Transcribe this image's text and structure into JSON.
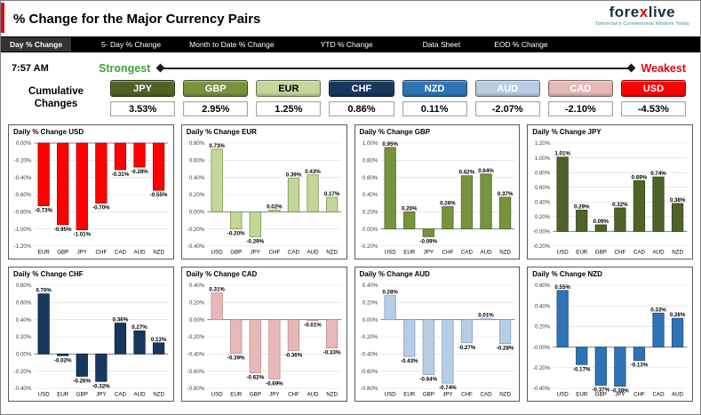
{
  "colors": {
    "strongest": "#3fa33a",
    "weakest": "#e30613",
    "logodark": "#17303e",
    "logoteal": "#2e8b8f",
    "navbg": "#000000",
    "navactivebg": "#333333"
  },
  "header": {
    "title": "% Change for the Major Currency Pairs",
    "logo_text_1": "fore",
    "logo_text_x": "x",
    "logo_text_2": "live",
    "logo_tagline": "Tomorrow's Conventional Wisdom Today"
  },
  "nav": {
    "items": [
      {
        "label": "Day % Change",
        "active": true
      },
      {
        "label": "5- Day % Change",
        "active": false
      },
      {
        "label": "Month to Date % Change",
        "active": false
      },
      {
        "label": "YTD % Change",
        "active": false
      },
      {
        "label": "Data Sheet",
        "active": false
      },
      {
        "label": "EOD % Change",
        "active": false
      }
    ]
  },
  "toolbar": {
    "time": "7:57 AM",
    "strongest_label": "Strongest",
    "weakest_label": "Weakest"
  },
  "cumulative": {
    "label_line1": "Cumulative",
    "label_line2": "Changes",
    "currencies": [
      {
        "code": "JPY",
        "value": "3.53%",
        "bg": "#4f6228",
        "fg": "#ffffff"
      },
      {
        "code": "GBP",
        "value": "2.95%",
        "bg": "#77933c",
        "fg": "#ffffff"
      },
      {
        "code": "EUR",
        "value": "1.25%",
        "bg": "#c3d69b",
        "fg": "#000000"
      },
      {
        "code": "CHF",
        "value": "0.86%",
        "bg": "#17375e",
        "fg": "#ffffff"
      },
      {
        "code": "NZD",
        "value": "0.11%",
        "bg": "#2e74b5",
        "fg": "#ffffff"
      },
      {
        "code": "AUD",
        "value": "-2.07%",
        "bg": "#b8cce4",
        "fg": "#ffffff"
      },
      {
        "code": "CAD",
        "value": "-2.10%",
        "bg": "#e6b9b8",
        "fg": "#ffffff"
      },
      {
        "code": "USD",
        "value": "-4.53%",
        "bg": "#fe0000",
        "fg": "#ffffff"
      }
    ]
  },
  "chart_data": [
    {
      "type": "bar",
      "code": "USD",
      "title": "Daily % Change USD",
      "color": "#fe0000",
      "bar_border": "#a80000",
      "categories": [
        "EUR",
        "GBP",
        "JPY",
        "CHF",
        "CAD",
        "AUD",
        "NZD"
      ],
      "values": [
        -0.73,
        -0.95,
        -1.01,
        -0.7,
        -0.31,
        -0.28,
        -0.55
      ],
      "ylim": [
        -1.2,
        0.0
      ],
      "ystep": 0.2,
      "grid": true,
      "legend": "none"
    },
    {
      "type": "bar",
      "code": "EUR",
      "title": "Daily % Change EUR",
      "color": "#c3d69b",
      "bar_border": "#76923c",
      "categories": [
        "USD",
        "GBP",
        "JPY",
        "CHF",
        "CAD",
        "AUD",
        "NZD"
      ],
      "values": [
        0.73,
        -0.2,
        -0.29,
        0.02,
        0.39,
        0.43,
        0.17
      ],
      "ylim": [
        -0.4,
        0.8
      ],
      "ystep": 0.2,
      "grid": true,
      "legend": "none"
    },
    {
      "type": "bar",
      "code": "GBP",
      "title": "Daily % Change GBP",
      "color": "#77933c",
      "bar_border": "#4f6228",
      "categories": [
        "USD",
        "EUR",
        "JPY",
        "CHF",
        "CAD",
        "AUD",
        "NZD"
      ],
      "values": [
        0.95,
        0.2,
        -0.09,
        0.26,
        0.62,
        0.64,
        0.37
      ],
      "ylim": [
        -0.2,
        1.0
      ],
      "ystep": 0.2,
      "grid": true,
      "legend": "none"
    },
    {
      "type": "bar",
      "code": "JPY",
      "title": "Daily % Change JPY",
      "color": "#4f6228",
      "bar_border": "#33421a",
      "categories": [
        "USD",
        "EUR",
        "GBP",
        "CHF",
        "CAD",
        "AUD",
        "NZD"
      ],
      "values": [
        1.01,
        0.29,
        0.09,
        0.32,
        0.69,
        0.74,
        0.38
      ],
      "ylim": [
        -0.2,
        1.2
      ],
      "ystep": 0.2,
      "grid": true,
      "legend": "none"
    },
    {
      "type": "bar",
      "code": "CHF",
      "title": "Daily % Change CHF",
      "color": "#17375e",
      "bar_border": "#0c213c",
      "categories": [
        "USD",
        "EUR",
        "GBP",
        "JPY",
        "CAD",
        "AUD",
        "NZD"
      ],
      "values": [
        0.7,
        -0.02,
        -0.26,
        -0.32,
        0.36,
        0.27,
        0.13
      ],
      "ylim": [
        -0.4,
        0.8
      ],
      "ystep": 0.2,
      "grid": true,
      "legend": "none"
    },
    {
      "type": "bar",
      "code": "CAD",
      "title": "Daily % Change CAD",
      "color": "#e6b9b8",
      "bar_border": "#bc8886",
      "categories": [
        "USD",
        "EUR",
        "GBP",
        "JPY",
        "CHF",
        "AUD",
        "NZD"
      ],
      "values": [
        0.31,
        -0.39,
        -0.62,
        -0.69,
        -0.36,
        -0.01,
        -0.33
      ],
      "ylim": [
        -0.8,
        0.4
      ],
      "ystep": 0.2,
      "grid": true,
      "legend": "none"
    },
    {
      "type": "bar",
      "code": "AUD",
      "title": "Daily % Change AUD",
      "color": "#b8cce4",
      "bar_border": "#7ba0cc",
      "categories": [
        "USD",
        "EUR",
        "GBP",
        "JPY",
        "CHF",
        "CAD",
        "NZD"
      ],
      "values": [
        0.28,
        -0.43,
        -0.64,
        -0.74,
        -0.27,
        0.01,
        -0.28
      ],
      "ylim": [
        -0.8,
        0.4
      ],
      "ystep": 0.2,
      "grid": true,
      "legend": "none"
    },
    {
      "type": "bar",
      "code": "NZD",
      "title": "Daily % Change NZD",
      "color": "#2e74b5",
      "bar_border": "#1d4e79",
      "categories": [
        "USD",
        "EUR",
        "GBP",
        "JPY",
        "CHF",
        "CAD",
        "AUD"
      ],
      "values": [
        0.55,
        -0.17,
        -0.37,
        -0.38,
        -0.13,
        0.33,
        0.28
      ],
      "ylim": [
        -0.4,
        0.6
      ],
      "ystep": 0.2,
      "grid": true,
      "legend": "none"
    }
  ]
}
